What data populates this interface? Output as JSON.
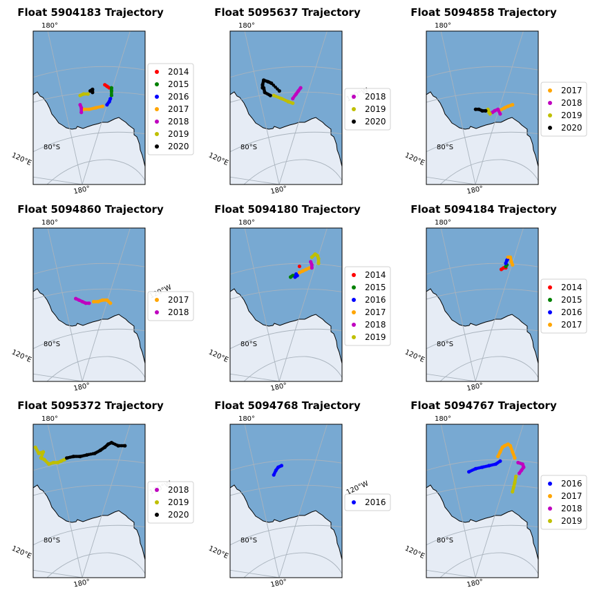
{
  "figure": {
    "labels": {
      "lon_top": "180°",
      "lon_bottom": "180°",
      "lon_left": "120°E",
      "lon_right": "120°W",
      "lat": "80°S"
    },
    "colors": {
      "ocean": "#78a9d2",
      "ice": "#e6ecf5",
      "year": {
        "2014": "#ff0000",
        "2015": "#008000",
        "2016": "#0000ff",
        "2017": "#ffa500",
        "2018": "#bf00bf",
        "2019": "#bfbf00",
        "2020": "#000000"
      }
    }
  },
  "chart_data": [
    {
      "type": "scatter",
      "title": "Float 5904183 Trajectory",
      "legend": [
        "2014",
        "2015",
        "2016",
        "2017",
        "2018",
        "2019",
        "2020"
      ],
      "legend_placement": "outside-right",
      "series": [
        {
          "name": "2014",
          "points": [
            [
              0.64,
              0.35
            ],
            [
              0.66,
              0.36
            ],
            [
              0.68,
              0.37
            ]
          ]
        },
        {
          "name": "2015",
          "points": [
            [
              0.7,
              0.37
            ],
            [
              0.7,
              0.39
            ],
            [
              0.7,
              0.42
            ]
          ]
        },
        {
          "name": "2016",
          "points": [
            [
              0.69,
              0.44
            ],
            [
              0.68,
              0.46
            ],
            [
              0.66,
              0.48
            ]
          ]
        },
        {
          "name": "2017",
          "points": [
            [
              0.62,
              0.49
            ],
            [
              0.56,
              0.5
            ],
            [
              0.5,
              0.51
            ],
            [
              0.45,
              0.51
            ]
          ]
        },
        {
          "name": "2018",
          "points": [
            [
              0.42,
              0.48
            ],
            [
              0.43,
              0.5
            ],
            [
              0.43,
              0.53
            ]
          ]
        },
        {
          "name": "2019",
          "points": [
            [
              0.42,
              0.42
            ],
            [
              0.45,
              0.41
            ],
            [
              0.49,
              0.41
            ]
          ]
        },
        {
          "name": "2020",
          "points": [
            [
              0.51,
              0.39
            ],
            [
              0.53,
              0.38
            ],
            [
              0.53,
              0.4
            ]
          ]
        }
      ]
    },
    {
      "type": "scatter",
      "title": "Float 5095637 Trajectory",
      "legend": [
        "2018",
        "2019",
        "2020"
      ],
      "legend_placement": "outside-right",
      "series": [
        {
          "name": "2018",
          "points": [
            [
              0.56,
              0.44
            ],
            [
              0.59,
              0.41
            ],
            [
              0.61,
              0.39
            ],
            [
              0.63,
              0.37
            ]
          ]
        },
        {
          "name": "2019",
          "points": [
            [
              0.56,
              0.47
            ],
            [
              0.52,
              0.46
            ],
            [
              0.46,
              0.44
            ],
            [
              0.39,
              0.42
            ]
          ]
        },
        {
          "name": "2020",
          "points": [
            [
              0.36,
              0.42
            ],
            [
              0.31,
              0.4
            ],
            [
              0.3,
              0.37
            ],
            [
              0.29,
              0.37
            ],
            [
              0.29,
              0.35
            ],
            [
              0.3,
              0.32
            ],
            [
              0.34,
              0.33
            ],
            [
              0.37,
              0.34
            ],
            [
              0.44,
              0.39
            ]
          ]
        }
      ]
    },
    {
      "type": "scatter",
      "title": "Float 5094858 Trajectory",
      "legend": [
        "2017",
        "2018",
        "2019",
        "2020"
      ],
      "legend_placement": "outside-right",
      "series": [
        {
          "name": "2017",
          "points": [
            [
              0.65,
              0.52
            ],
            [
              0.7,
              0.5
            ],
            [
              0.73,
              0.49
            ],
            [
              0.77,
              0.48
            ]
          ]
        },
        {
          "name": "2018",
          "points": [
            [
              0.59,
              0.53
            ],
            [
              0.61,
              0.52
            ],
            [
              0.64,
              0.51
            ],
            [
              0.66,
              0.54
            ]
          ]
        },
        {
          "name": "2019",
          "points": [
            [
              0.55,
              0.51
            ],
            [
              0.56,
              0.53
            ],
            [
              0.57,
              0.54
            ]
          ]
        },
        {
          "name": "2020",
          "points": [
            [
              0.44,
              0.51
            ],
            [
              0.47,
              0.51
            ],
            [
              0.5,
              0.52
            ],
            [
              0.53,
              0.52
            ]
          ]
        }
      ]
    },
    {
      "type": "scatter",
      "title": "Float 5094860 Trajectory",
      "legend": [
        "2017",
        "2018"
      ],
      "legend_placement": "outside-right",
      "series": [
        {
          "name": "2017",
          "points": [
            [
              0.54,
              0.48
            ],
            [
              0.58,
              0.48
            ],
            [
              0.62,
              0.47
            ],
            [
              0.66,
              0.47
            ],
            [
              0.69,
              0.49
            ]
          ]
        },
        {
          "name": "2018",
          "points": [
            [
              0.38,
              0.46
            ],
            [
              0.41,
              0.47
            ],
            [
              0.44,
              0.48
            ],
            [
              0.47,
              0.49
            ],
            [
              0.5,
              0.49
            ]
          ]
        }
      ]
    },
    {
      "type": "scatter",
      "title": "Float 5094180 Trajectory",
      "legend": [
        "2014",
        "2015",
        "2016",
        "2017",
        "2018",
        "2019"
      ],
      "legend_placement": "outside-right",
      "series": [
        {
          "name": "2014",
          "points": [
            [
              0.62,
              0.25
            ]
          ]
        },
        {
          "name": "2015",
          "points": [
            [
              0.54,
              0.32
            ],
            [
              0.56,
              0.31
            ],
            [
              0.57,
              0.31
            ]
          ]
        },
        {
          "name": "2016",
          "points": [
            [
              0.59,
              0.3
            ],
            [
              0.6,
              0.31
            ],
            [
              0.58,
              0.32
            ]
          ]
        },
        {
          "name": "2017",
          "points": [
            [
              0.62,
              0.29
            ],
            [
              0.65,
              0.28
            ],
            [
              0.68,
              0.27
            ],
            [
              0.71,
              0.26
            ]
          ]
        },
        {
          "name": "2018",
          "points": [
            [
              0.72,
              0.22
            ],
            [
              0.73,
              0.24
            ],
            [
              0.73,
              0.26
            ]
          ]
        },
        {
          "name": "2019",
          "points": [
            [
              0.73,
              0.19
            ],
            [
              0.76,
              0.17
            ],
            [
              0.78,
              0.18
            ],
            [
              0.79,
              0.2
            ],
            [
              0.79,
              0.23
            ]
          ]
        }
      ]
    },
    {
      "type": "scatter",
      "title": "Float 5094184 Trajectory",
      "legend": [
        "2014",
        "2015",
        "2016",
        "2017"
      ],
      "legend_placement": "outside-right",
      "series": [
        {
          "name": "2014",
          "points": [
            [
              0.67,
              0.27
            ],
            [
              0.69,
              0.26
            ],
            [
              0.71,
              0.26
            ]
          ]
        },
        {
          "name": "2015",
          "points": [
            [
              0.71,
              0.25
            ],
            [
              0.72,
              0.24
            ]
          ]
        },
        {
          "name": "2016",
          "points": [
            [
              0.71,
              0.23
            ],
            [
              0.72,
              0.21
            ],
            [
              0.73,
              0.2
            ]
          ]
        },
        {
          "name": "2017",
          "points": [
            [
              0.73,
              0.19
            ],
            [
              0.75,
              0.19
            ],
            [
              0.76,
              0.22
            ],
            [
              0.77,
              0.24
            ]
          ]
        }
      ]
    },
    {
      "type": "scatter",
      "title": "Float 5095372 Trajectory",
      "legend": [
        "2018",
        "2019",
        "2020"
      ],
      "legend_placement": "outside-right",
      "series": [
        {
          "name": "2018",
          "points": []
        },
        {
          "name": "2019",
          "points": [
            [
              0.02,
              0.15
            ],
            [
              0.05,
              0.19
            ],
            [
              0.09,
              0.18
            ],
            [
              0.07,
              0.22
            ],
            [
              0.1,
              0.23
            ],
            [
              0.14,
              0.26
            ],
            [
              0.18,
              0.25
            ],
            [
              0.22,
              0.25
            ],
            [
              0.25,
              0.24
            ],
            [
              0.28,
              0.23
            ]
          ]
        },
        {
          "name": "2020",
          "points": [
            [
              0.3,
              0.22
            ],
            [
              0.36,
              0.21
            ],
            [
              0.42,
              0.21
            ],
            [
              0.48,
              0.2
            ],
            [
              0.55,
              0.19
            ],
            [
              0.6,
              0.17
            ],
            [
              0.64,
              0.15
            ],
            [
              0.67,
              0.13
            ],
            [
              0.7,
              0.12
            ],
            [
              0.76,
              0.14
            ],
            [
              0.82,
              0.14
            ]
          ]
        }
      ]
    },
    {
      "type": "scatter",
      "title": "Float 5094768 Trajectory",
      "legend": [
        "2016"
      ],
      "legend_placement": "outside-right",
      "series": [
        {
          "name": "2016",
          "points": [
            [
              0.39,
              0.33
            ],
            [
              0.41,
              0.3
            ],
            [
              0.43,
              0.28
            ],
            [
              0.46,
              0.27
            ]
          ]
        }
      ]
    },
    {
      "type": "scatter",
      "title": "Float 5094767 Trajectory",
      "legend": [
        "2016",
        "2017",
        "2018",
        "2019"
      ],
      "legend_placement": "outside-right",
      "series": [
        {
          "name": "2016",
          "points": [
            [
              0.38,
              0.31
            ],
            [
              0.44,
              0.29
            ],
            [
              0.5,
              0.28
            ],
            [
              0.56,
              0.27
            ],
            [
              0.62,
              0.26
            ],
            [
              0.66,
              0.24
            ]
          ]
        },
        {
          "name": "2017",
          "points": [
            [
              0.64,
              0.21
            ],
            [
              0.66,
              0.18
            ],
            [
              0.68,
              0.15
            ],
            [
              0.7,
              0.14
            ],
            [
              0.73,
              0.13
            ],
            [
              0.75,
              0.14
            ],
            [
              0.77,
              0.18
            ],
            [
              0.79,
              0.22
            ]
          ]
        },
        {
          "name": "2018",
          "points": [
            [
              0.82,
              0.25
            ],
            [
              0.86,
              0.26
            ],
            [
              0.87,
              0.28
            ],
            [
              0.85,
              0.3
            ],
            [
              0.83,
              0.32
            ]
          ]
        },
        {
          "name": "2019",
          "points": [
            [
              0.8,
              0.34
            ],
            [
              0.79,
              0.38
            ],
            [
              0.78,
              0.41
            ],
            [
              0.77,
              0.44
            ]
          ]
        }
      ]
    }
  ]
}
